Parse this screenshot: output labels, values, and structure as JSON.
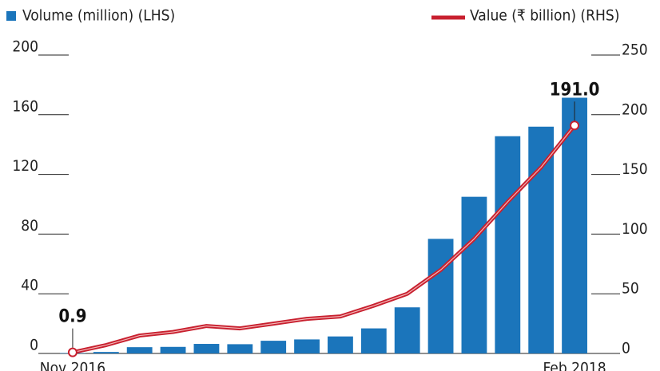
{
  "chart_data": {
    "type": "bar-line",
    "categories": [
      "Nov 2016",
      null,
      null,
      null,
      null,
      null,
      null,
      null,
      null,
      null,
      null,
      null,
      null,
      null,
      null,
      "Feb 2018"
    ],
    "series": [
      {
        "name": "Volume (million) (LHS)",
        "type": "bar",
        "color": "#1b75bb",
        "values": [
          0.3,
          1,
          4.2,
          4.4,
          6.4,
          6.2,
          8.5,
          9.4,
          11.4,
          16.8,
          30.9,
          76.8,
          105,
          145.6,
          152,
          171.4
        ]
      },
      {
        "name": "Value (₹ billion) (RHS)",
        "type": "line",
        "axis": "y2",
        "color": "#c8202f",
        "values": [
          0.9,
          7,
          15,
          18,
          23,
          21,
          25,
          29,
          31,
          40,
          50,
          70,
          96,
          127,
          156,
          191.0
        ],
        "value_labels": [
          "0.9",
          null,
          null,
          null,
          null,
          null,
          null,
          null,
          null,
          null,
          null,
          null,
          null,
          null,
          null,
          "191.0"
        ]
      }
    ],
    "ylim": [
      0,
      200
    ],
    "yticks": [
      0,
      40,
      80,
      120,
      160,
      200
    ],
    "y2lim": [
      0,
      250
    ],
    "y2ticks": [
      0,
      50,
      100,
      150,
      200,
      250
    ]
  }
}
